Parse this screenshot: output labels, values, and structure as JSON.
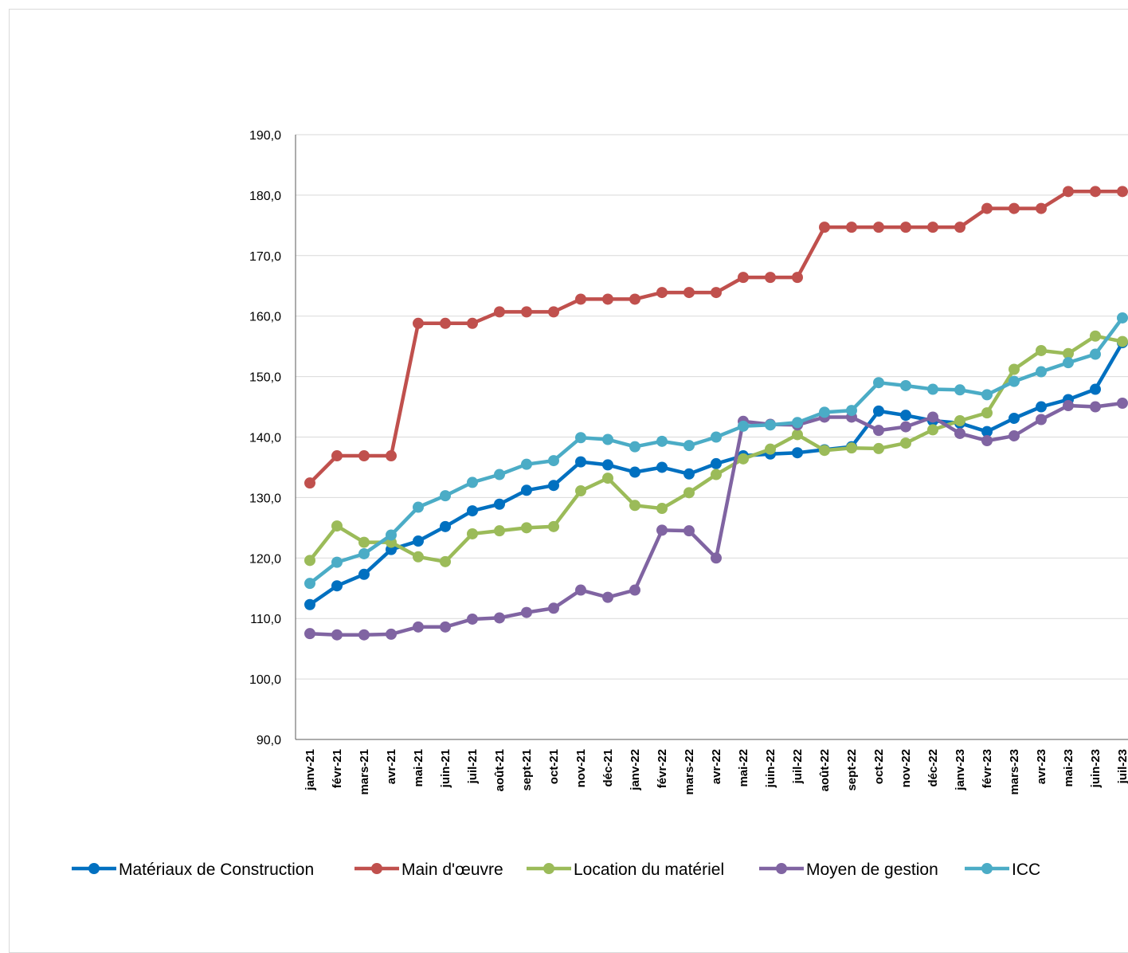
{
  "chart_data": {
    "type": "line",
    "title": "",
    "xlabel": "",
    "ylabel": "",
    "ylim": [
      90,
      190
    ],
    "y_ticks": [
      "90,0",
      "100,0",
      "110,0",
      "120,0",
      "130,0",
      "140,0",
      "150,0",
      "160,0",
      "170,0",
      "180,0",
      "190,0"
    ],
    "grid": "horizontal",
    "legend_position": "bottom",
    "categories": [
      "janv-21",
      "févr-21",
      "mars-21",
      "avr-21",
      "mai-21",
      "juin-21",
      "juil-21",
      "août-21",
      "sept-21",
      "oct-21",
      "nov-21",
      "déc-21",
      "janv-22",
      "févr-22",
      "mars-22",
      "avr-22",
      "mai-22",
      "juin-22",
      "juil-22",
      "août-22",
      "sept-22",
      "oct-22",
      "nov-22",
      "déc-22",
      "janv-23",
      "févr-23",
      "mars-23",
      "avr-23",
      "mai-23",
      "juin-23",
      "juil-23"
    ],
    "series": [
      {
        "name": "Matériaux de Construction",
        "color": "#0070C0",
        "values": [
          112.3,
          115.4,
          117.3,
          121.4,
          122.8,
          125.2,
          127.8,
          128.9,
          131.2,
          132.0,
          135.9,
          135.4,
          134.2,
          135.0,
          133.9,
          135.6,
          136.9,
          137.2,
          137.4,
          137.9,
          138.4,
          144.3,
          143.6,
          142.7,
          142.3,
          140.9,
          143.1,
          145.0,
          146.2,
          147.9,
          155.6
        ]
      },
      {
        "name": "Main d'œuvre",
        "color": "#C0504D",
        "values": [
          132.4,
          136.9,
          136.9,
          136.9,
          158.8,
          158.8,
          158.8,
          160.7,
          160.7,
          160.7,
          162.8,
          162.8,
          162.8,
          163.9,
          163.9,
          163.9,
          166.4,
          166.4,
          166.4,
          174.7,
          174.7,
          174.7,
          174.7,
          174.7,
          174.7,
          177.8,
          177.8,
          177.8,
          180.6,
          180.6,
          180.6
        ]
      },
      {
        "name": "Location du matériel",
        "color": "#9BBB59",
        "values": [
          119.6,
          125.3,
          122.6,
          122.6,
          120.2,
          119.4,
          124.0,
          124.5,
          125.0,
          125.2,
          131.1,
          133.2,
          128.7,
          128.2,
          130.8,
          133.8,
          136.4,
          138.0,
          140.4,
          137.8,
          138.2,
          138.1,
          139.0,
          141.2,
          142.7,
          144.0,
          151.2,
          154.3,
          153.8,
          156.7,
          155.8
        ]
      },
      {
        "name": "Moyen de gestion",
        "color": "#8064A2",
        "values": [
          107.5,
          107.3,
          107.3,
          107.4,
          108.6,
          108.6,
          109.9,
          110.1,
          111.0,
          111.7,
          114.7,
          113.5,
          114.7,
          124.6,
          124.5,
          120.0,
          142.6,
          142.1,
          142.0,
          143.3,
          143.3,
          141.1,
          141.7,
          143.3,
          140.6,
          139.4,
          140.2,
          142.9,
          145.2,
          145.0,
          145.6
        ]
      },
      {
        "name": "ICC",
        "color": "#4BACC6",
        "values": [
          115.8,
          119.3,
          120.7,
          123.8,
          128.4,
          130.3,
          132.5,
          133.8,
          135.5,
          136.1,
          139.9,
          139.6,
          138.4,
          139.3,
          138.6,
          140.0,
          141.8,
          142.0,
          142.4,
          144.1,
          144.4,
          149.0,
          148.5,
          147.9,
          147.8,
          147.0,
          149.2,
          150.8,
          152.3,
          153.7,
          159.7
        ]
      }
    ]
  }
}
